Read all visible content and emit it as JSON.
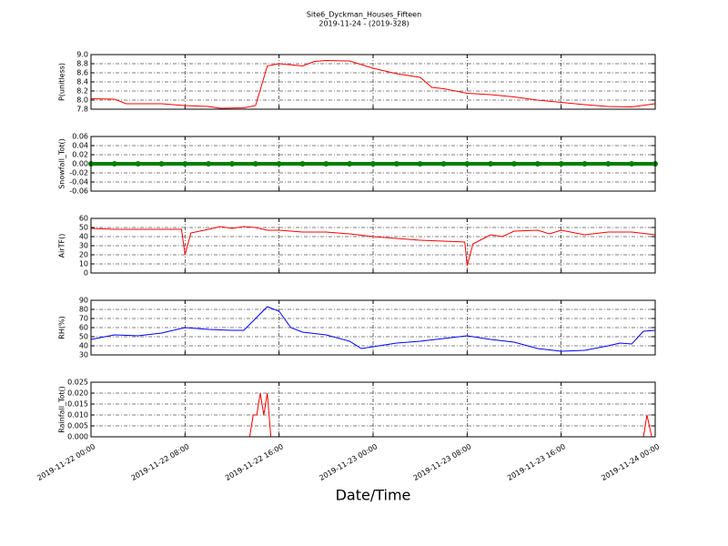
{
  "figure": {
    "title": "Site6_Dyckman_Houses_Fifteen",
    "subtitle": "2019-11-24 - (2019-328)",
    "x_label": "Date/Time",
    "xlim": [
      "2019-11-22 00:00",
      "2019-11-24 00:00"
    ],
    "xticks": [
      "2019-11-22 00:00",
      "2019-11-22 08:00",
      "2019-11-22 16:00",
      "2019-11-23 00:00",
      "2019-11-23 08:00",
      "2019-11-23 16:00",
      "2019-11-24 00:00"
    ]
  },
  "chart_data": [
    {
      "type": "line",
      "y_label": "P(unitless)",
      "grid": true,
      "ylim": [
        7.8,
        9.0
      ],
      "yticks": [
        7.8,
        {
          "value": 8.0,
          "label": "8.0"
        },
        8.2,
        8.4,
        8.6,
        8.8,
        {
          "value": 9.0,
          "label": "9.0"
        }
      ],
      "x": [
        "2019-11-22 00:00",
        "2019-11-22 02:00",
        "2019-11-22 03:00",
        "2019-11-22 06:00",
        "2019-11-22 08:00",
        "2019-11-22 10:00",
        "2019-11-22 11:00",
        "2019-11-22 13:00",
        "2019-11-22 14:00",
        "2019-11-22 15:00",
        "2019-11-22 16:00",
        "2019-11-22 18:00",
        "2019-11-22 19:00",
        "2019-11-22 20:00",
        "2019-11-22 22:00",
        "2019-11-22 23:00",
        "2019-11-23 00:00",
        "2019-11-23 02:00",
        "2019-11-23 04:00",
        "2019-11-23 05:00",
        "2019-11-23 06:00",
        "2019-11-23 08:00",
        "2019-11-23 10:00",
        "2019-11-23 12:00",
        "2019-11-23 14:00",
        "2019-11-23 16:00",
        "2019-11-23 18:00",
        "2019-11-23 20:00",
        "2019-11-23 22:00",
        "2019-11-24 00:00"
      ],
      "series": [
        {
          "color": "#ff0000",
          "values": [
            8.03,
            8.02,
            7.92,
            7.92,
            7.88,
            7.86,
            7.82,
            7.83,
            7.88,
            8.75,
            8.8,
            8.75,
            8.85,
            8.87,
            8.86,
            8.78,
            8.7,
            8.58,
            8.5,
            8.28,
            8.25,
            8.15,
            8.12,
            8.07,
            8.0,
            7.95,
            7.9,
            7.86,
            7.85,
            7.92
          ]
        }
      ]
    },
    {
      "type": "line",
      "y_label": "Snowfall_Tot()",
      "grid": true,
      "markers": true,
      "ylim": [
        -0.06,
        0.06
      ],
      "yticks": [
        {
          "value": -0.06,
          "label": "-0.06"
        },
        {
          "value": -0.04,
          "label": "-0.04"
        },
        {
          "value": -0.02,
          "label": "-0.02"
        },
        {
          "value": 0,
          "label": "0.00"
        },
        0.02,
        0.04,
        0.06
      ],
      "x": [
        "2019-11-22 00:00",
        "2019-11-22 02:00",
        "2019-11-22 04:00",
        "2019-11-22 06:00",
        "2019-11-22 08:00",
        "2019-11-22 10:00",
        "2019-11-22 12:00",
        "2019-11-22 14:00",
        "2019-11-22 16:00",
        "2019-11-22 18:00",
        "2019-11-22 20:00",
        "2019-11-22 22:00",
        "2019-11-23 00:00",
        "2019-11-23 02:00",
        "2019-11-23 04:00",
        "2019-11-23 06:00",
        "2019-11-23 08:00",
        "2019-11-23 10:00",
        "2019-11-23 12:00",
        "2019-11-23 14:00",
        "2019-11-23 16:00",
        "2019-11-23 18:00",
        "2019-11-23 20:00",
        "2019-11-23 22:00",
        "2019-11-24 00:00"
      ],
      "series": [
        {
          "color": "#008000",
          "values": [
            0,
            0,
            0,
            0,
            0,
            0,
            0,
            0,
            0,
            0,
            0,
            0,
            0,
            0,
            0,
            0,
            0,
            0,
            0,
            0,
            0,
            0,
            0,
            0,
            0
          ]
        }
      ]
    },
    {
      "type": "line",
      "y_label": "AirTF()",
      "grid": true,
      "ylim": [
        0,
        60
      ],
      "yticks": [
        0,
        10,
        20,
        30,
        40,
        50,
        60
      ],
      "x": [
        "2019-11-22 00:00",
        "2019-11-22 02:00",
        "2019-11-22 04:00",
        "2019-11-22 06:00",
        "2019-11-22 07:42",
        "2019-11-22 08:00",
        "2019-11-22 08:30",
        "2019-11-22 10:00",
        "2019-11-22 11:00",
        "2019-11-22 12:00",
        "2019-11-22 13:00",
        "2019-11-22 14:00",
        "2019-11-22 15:00",
        "2019-11-22 16:00",
        "2019-11-22 18:00",
        "2019-11-22 20:00",
        "2019-11-22 22:00",
        "2019-11-23 00:00",
        "2019-11-23 02:00",
        "2019-11-23 04:00",
        "2019-11-23 06:00",
        "2019-11-23 07:48",
        "2019-11-23 08:00",
        "2019-11-23 08:30",
        "2019-11-23 10:00",
        "2019-11-23 11:00",
        "2019-11-23 12:00",
        "2019-11-23 14:00",
        "2019-11-23 15:00",
        "2019-11-23 16:00",
        "2019-11-23 18:00",
        "2019-11-23 20:00",
        "2019-11-23 22:00",
        "2019-11-24 00:00"
      ],
      "series": [
        {
          "color": "#ff0000",
          "values": [
            49,
            48,
            48,
            48,
            48,
            20,
            44,
            48,
            51,
            49,
            51,
            50,
            47,
            47,
            45,
            45,
            43,
            40,
            38,
            36,
            35,
            34,
            8,
            32,
            42,
            40,
            46,
            47,
            43,
            47,
            42,
            45,
            45,
            42
          ]
        }
      ]
    },
    {
      "type": "line",
      "y_label": "RH(%)",
      "grid": true,
      "ylim": [
        30,
        90
      ],
      "yticks": [
        30,
        40,
        50,
        60,
        70,
        80,
        90
      ],
      "x": [
        "2019-11-22 00:00",
        "2019-11-22 02:00",
        "2019-11-22 04:00",
        "2019-11-22 06:00",
        "2019-11-22 08:00",
        "2019-11-22 10:00",
        "2019-11-22 12:00",
        "2019-11-22 13:00",
        "2019-11-22 14:00",
        "2019-11-22 15:00",
        "2019-11-22 16:00",
        "2019-11-22 17:00",
        "2019-11-22 18:00",
        "2019-11-22 20:00",
        "2019-11-22 22:00",
        "2019-11-22 23:00",
        "2019-11-23 00:00",
        "2019-11-23 02:00",
        "2019-11-23 04:00",
        "2019-11-23 06:00",
        "2019-11-23 08:00",
        "2019-11-23 10:00",
        "2019-11-23 12:00",
        "2019-11-23 14:00",
        "2019-11-23 16:00",
        "2019-11-23 18:00",
        "2019-11-23 20:00",
        "2019-11-23 21:00",
        "2019-11-23 22:00",
        "2019-11-23 23:00",
        "2019-11-24 00:00"
      ],
      "series": [
        {
          "color": "#0000ff",
          "values": [
            47,
            52,
            51,
            54,
            60,
            58,
            57,
            57,
            70,
            83,
            78,
            60,
            55,
            52,
            45,
            37,
            39,
            43,
            45,
            48,
            51,
            47,
            44,
            37,
            34,
            35,
            40,
            43,
            42,
            56,
            57
          ]
        }
      ]
    },
    {
      "type": "line",
      "y_label": "Rainfall_Tot()",
      "grid": true,
      "ylim": [
        0,
        0.025
      ],
      "yticks": [
        {
          "value": 0,
          "label": "0.000"
        },
        {
          "value": 0.005,
          "label": "0.005"
        },
        {
          "value": 0.01,
          "label": "0.010"
        },
        {
          "value": 0.015,
          "label": "0.015"
        },
        {
          "value": 0.02,
          "label": "0.020"
        },
        {
          "value": 0.025,
          "label": "0.025"
        }
      ],
      "x": [
        "2019-11-22 00:00",
        "2019-11-22 13:30",
        "2019-11-22 13:48",
        "2019-11-22 14:06",
        "2019-11-22 14:24",
        "2019-11-22 14:42",
        "2019-11-22 15:00",
        "2019-11-22 15:18",
        "2019-11-23 23:00",
        "2019-11-23 23:18",
        "2019-11-23 23:42",
        "2019-11-24 00:00"
      ],
      "series": [
        {
          "color": "#ff0000",
          "values": [
            0,
            0,
            0.01,
            0.01,
            0.02,
            0.01,
            0.02,
            0,
            0,
            0.01,
            0,
            0
          ]
        }
      ]
    }
  ]
}
